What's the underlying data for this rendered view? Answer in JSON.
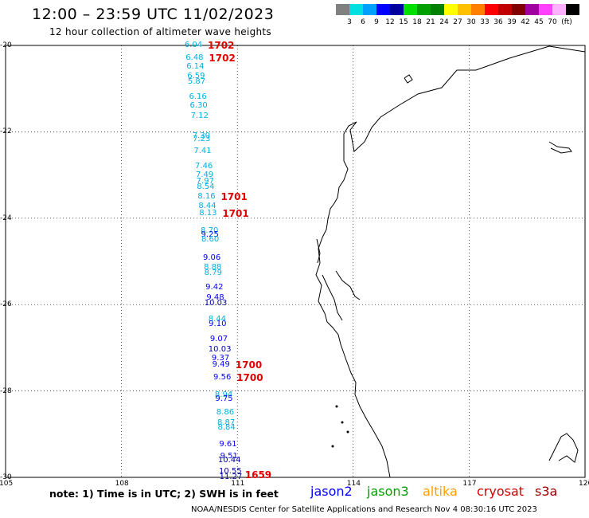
{
  "header": {
    "title": "12:00 – 23:59 UTC 11/02/2023",
    "subtitle": "12 hour collection of altimeter wave heights"
  },
  "legend": {
    "unit_label": "(ft)",
    "colors": [
      "#808080",
      "#00e0e0",
      "#00a0ff",
      "#0000ff",
      "#0000a0",
      "#00e000",
      "#00a000",
      "#008000",
      "#ffff00",
      "#ffc000",
      "#ff8000",
      "#ff0000",
      "#c00000",
      "#800000",
      "#a000a0",
      "#ff40ff",
      "#ffb0ff",
      "#000000"
    ],
    "labels": [
      "3",
      "6",
      "9",
      "12",
      "15",
      "18",
      "21",
      "24",
      "27",
      "30",
      "33",
      "36",
      "39",
      "42",
      "45",
      "70"
    ]
  },
  "axes": {
    "lat_labels": [
      "-20",
      "-22",
      "-24",
      "-26",
      "-28",
      "-30"
    ],
    "lon_labels": [
      "105",
      "108",
      "111",
      "114",
      "117",
      "120"
    ]
  },
  "observations": [
    {
      "v": "6.04",
      "lat": -20.0,
      "c": "#00b0e0"
    },
    {
      "v": "6.48",
      "lat": -20.3,
      "c": "#00b0e0"
    },
    {
      "v": "6.14",
      "lat": -20.5,
      "c": "#00b0e0"
    },
    {
      "v": "6.59",
      "lat": -20.72,
      "c": "#00b0e0"
    },
    {
      "v": "5.87",
      "lat": -20.85,
      "c": "#00b0e0"
    },
    {
      "v": "6.16",
      "lat": -21.2,
      "c": "#00b0e0"
    },
    {
      "v": "6.30",
      "lat": -21.4,
      "c": "#00b0e0"
    },
    {
      "v": "7.12",
      "lat": -21.65,
      "c": "#00b0e0"
    },
    {
      "v": "7.30",
      "lat": -22.1,
      "c": "#00b0e0"
    },
    {
      "v": "7.23",
      "lat": -22.18,
      "c": "#00b0e0"
    },
    {
      "v": "7.41",
      "lat": -22.45,
      "c": "#00b0e0"
    },
    {
      "v": "7.46",
      "lat": -22.8,
      "c": "#00b0e0"
    },
    {
      "v": "7.49",
      "lat": -23.0,
      "c": "#00b0e0"
    },
    {
      "v": "7.97",
      "lat": -23.15,
      "c": "#00b0e0"
    },
    {
      "v": "8.54",
      "lat": -23.28,
      "c": "#00b0e0"
    },
    {
      "v": "8.16",
      "lat": -23.5,
      "c": "#00b0e0"
    },
    {
      "v": "8.44",
      "lat": -23.72,
      "c": "#00b0e0"
    },
    {
      "v": "8.13",
      "lat": -23.9,
      "c": "#00b0e0"
    },
    {
      "v": "8.70",
      "lat": -24.3,
      "c": "#00b0e0"
    },
    {
      "v": "9.25",
      "lat": -24.4,
      "c": "#0000ff"
    },
    {
      "v": "8.60",
      "lat": -24.5,
      "c": "#00b0e0"
    },
    {
      "v": "9.06",
      "lat": -24.92,
      "c": "#0000ff"
    },
    {
      "v": "8.88",
      "lat": -25.15,
      "c": "#00b0e0"
    },
    {
      "v": "8.79",
      "lat": -25.28,
      "c": "#00b0e0"
    },
    {
      "v": "9.42",
      "lat": -25.6,
      "c": "#0000ff"
    },
    {
      "v": "9.48",
      "lat": -25.85,
      "c": "#0000ff"
    },
    {
      "v": "10.03",
      "lat": -25.97,
      "c": "#0000a0"
    },
    {
      "v": "8.44",
      "lat": -26.35,
      "c": "#00b0e0"
    },
    {
      "v": "9.10",
      "lat": -26.45,
      "c": "#0000ff"
    },
    {
      "v": "9.07",
      "lat": -26.8,
      "c": "#0000ff"
    },
    {
      "v": "10.03",
      "lat": -27.05,
      "c": "#0000a0"
    },
    {
      "v": "9.37",
      "lat": -27.25,
      "c": "#0000ff"
    },
    {
      "v": "9.49",
      "lat": -27.4,
      "c": "#0000ff"
    },
    {
      "v": "9.56",
      "lat": -27.7,
      "c": "#0000ff"
    },
    {
      "v": "8.94",
      "lat": -28.1,
      "c": "#00b0e0"
    },
    {
      "v": "9.75",
      "lat": -28.2,
      "c": "#0000ff"
    },
    {
      "v": "8.86",
      "lat": -28.5,
      "c": "#00b0e0"
    },
    {
      "v": "8.87",
      "lat": -28.75,
      "c": "#00b0e0"
    },
    {
      "v": "8.84",
      "lat": -28.85,
      "c": "#00b0e0"
    },
    {
      "v": "9.61",
      "lat": -29.25,
      "c": "#0000ff"
    },
    {
      "v": "9.51",
      "lat": -29.52,
      "c": "#0000ff"
    },
    {
      "v": "10.44",
      "lat": -29.62,
      "c": "#0000a0"
    },
    {
      "v": "10.55",
      "lat": -29.87,
      "c": "#0000a0"
    },
    {
      "v": "11.27",
      "lat": -30.0,
      "c": "#0000a0"
    }
  ],
  "time_labels": [
    {
      "t": "1702",
      "lat": -20.0
    },
    {
      "t": "1702",
      "lat": -20.3
    },
    {
      "t": "1701",
      "lat": -23.5
    },
    {
      "t": "1701",
      "lat": -23.9
    },
    {
      "t": "1700",
      "lat": -27.4
    },
    {
      "t": "1700",
      "lat": -27.7
    },
    {
      "t": "1659",
      "lat": -29.95
    }
  ],
  "note": "note:  1) Time is in UTC;  2) SWH is in feet",
  "satellites": [
    {
      "name": "jason2",
      "color": "#0000ff"
    },
    {
      "name": "jason3",
      "color": "#00a000"
    },
    {
      "name": "altika",
      "color": "#ffa000"
    },
    {
      "name": "cryosat",
      "color": "#d00000"
    },
    {
      "name": "s3a",
      "color": "#a00000"
    }
  ],
  "footer": "NOAA/NESDIS Center for Satellite Applications and Research   Nov  4 08:30:16 UTC 2023"
}
